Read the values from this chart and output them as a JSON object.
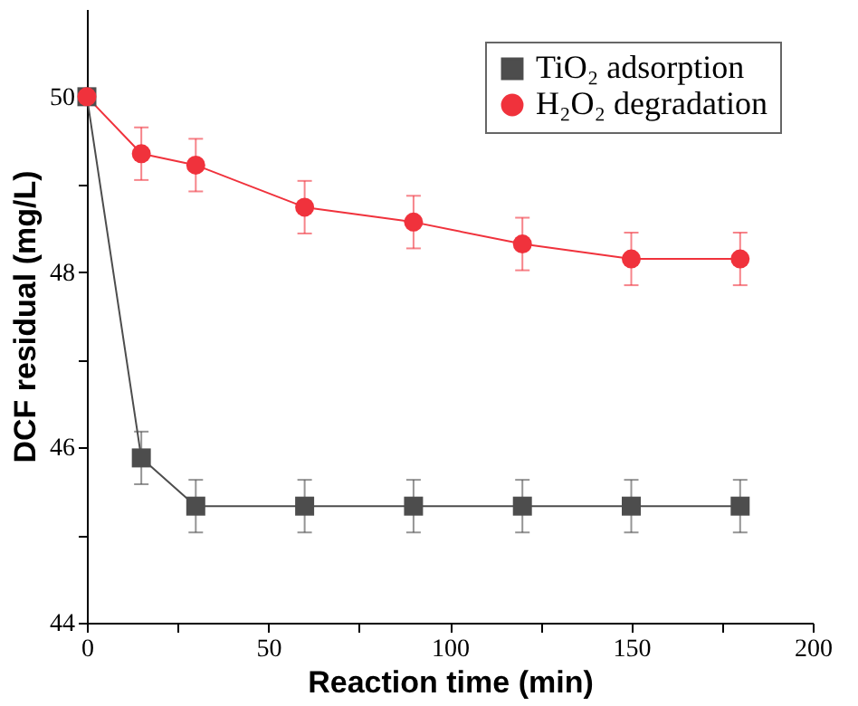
{
  "chart_data": {
    "type": "line",
    "xlabel": "Reaction time (min)",
    "ylabel": "DCF residual (mg/L)",
    "x": [
      0,
      15,
      30,
      60,
      90,
      120,
      150,
      180
    ],
    "series": [
      {
        "name": "TiO₂ adsorption",
        "color": "#4d4d4d",
        "marker": "square",
        "values": [
          50,
          45.88,
          45.33,
          45.33,
          45.33,
          45.33,
          45.33,
          45.33
        ],
        "errors": [
          null,
          0.3,
          0.3,
          0.3,
          0.3,
          0.3,
          0.3,
          0.3
        ]
      },
      {
        "name": "H₂O₂ degradation",
        "color": "#f0323c",
        "marker": "circle",
        "values": [
          50,
          49.35,
          49.22,
          48.74,
          48.57,
          48.32,
          48.15,
          48.15
        ],
        "errors": [
          null,
          0.3,
          0.3,
          0.3,
          0.3,
          0.3,
          0.3,
          0.3
        ]
      }
    ],
    "xlim": [
      0,
      200
    ],
    "xticks": [
      0,
      {
        "value": 25,
        "label": null
      },
      50,
      {
        "value": 75,
        "label": null
      },
      100,
      {
        "value": 125,
        "label": null
      },
      150,
      {
        "value": 175,
        "label": null
      },
      200
    ],
    "ylim": [
      44,
      51
    ],
    "yticks": [
      44,
      {
        "value": 45,
        "label": null
      },
      46,
      {
        "value": 47,
        "label": null
      },
      48,
      {
        "value": 49,
        "label": null
      },
      50
    ],
    "legend": "top right",
    "grid": false,
    "line_style": "solid"
  }
}
